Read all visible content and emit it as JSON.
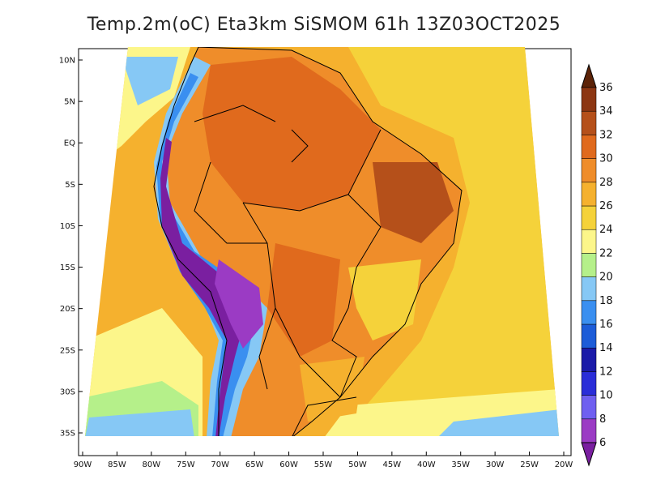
{
  "title": "Temp.2m(oC) Eta3km SiSMOM 61h 13Z03OCT2025",
  "map": {
    "variable": "2 m air temperature",
    "units": "oC",
    "lon_range": [
      -90,
      -20
    ],
    "lat_range": [
      -38,
      11
    ],
    "lon_ticks": [
      "90W",
      "85W",
      "80W",
      "75W",
      "70W",
      "65W",
      "60W",
      "55W",
      "50W",
      "45W",
      "40W",
      "35W",
      "30W",
      "25W",
      "20W"
    ],
    "lat_ticks": [
      "10N",
      "5N",
      "EQ",
      "5S",
      "10S",
      "15S",
      "20S",
      "25S",
      "30S",
      "35S"
    ]
  },
  "colorbar": {
    "labels": [
      "6",
      "8",
      "10",
      "12",
      "14",
      "16",
      "18",
      "20",
      "22",
      "24",
      "26",
      "28",
      "30",
      "32",
      "34",
      "36"
    ],
    "colors": [
      "#7a1fa0",
      "#9b3bc4",
      "#6f5ff0",
      "#2a2dd8",
      "#1a1aa8",
      "#1c5cd8",
      "#3a8ff0",
      "#86c8f5",
      "#b5f08a",
      "#fcf68a",
      "#f5d23a",
      "#f5b12e",
      "#ef8d2a",
      "#e06a1d",
      "#b5501a",
      "#8c3612",
      "#5c2308"
    ]
  },
  "colors": {
    "ocean_warm": "#f5b12e",
    "ocean_cool": "#f5d23a",
    "land_hot": "#e06a1d",
    "andes_cold": "#7a1fa0",
    "border": "#000000"
  }
}
